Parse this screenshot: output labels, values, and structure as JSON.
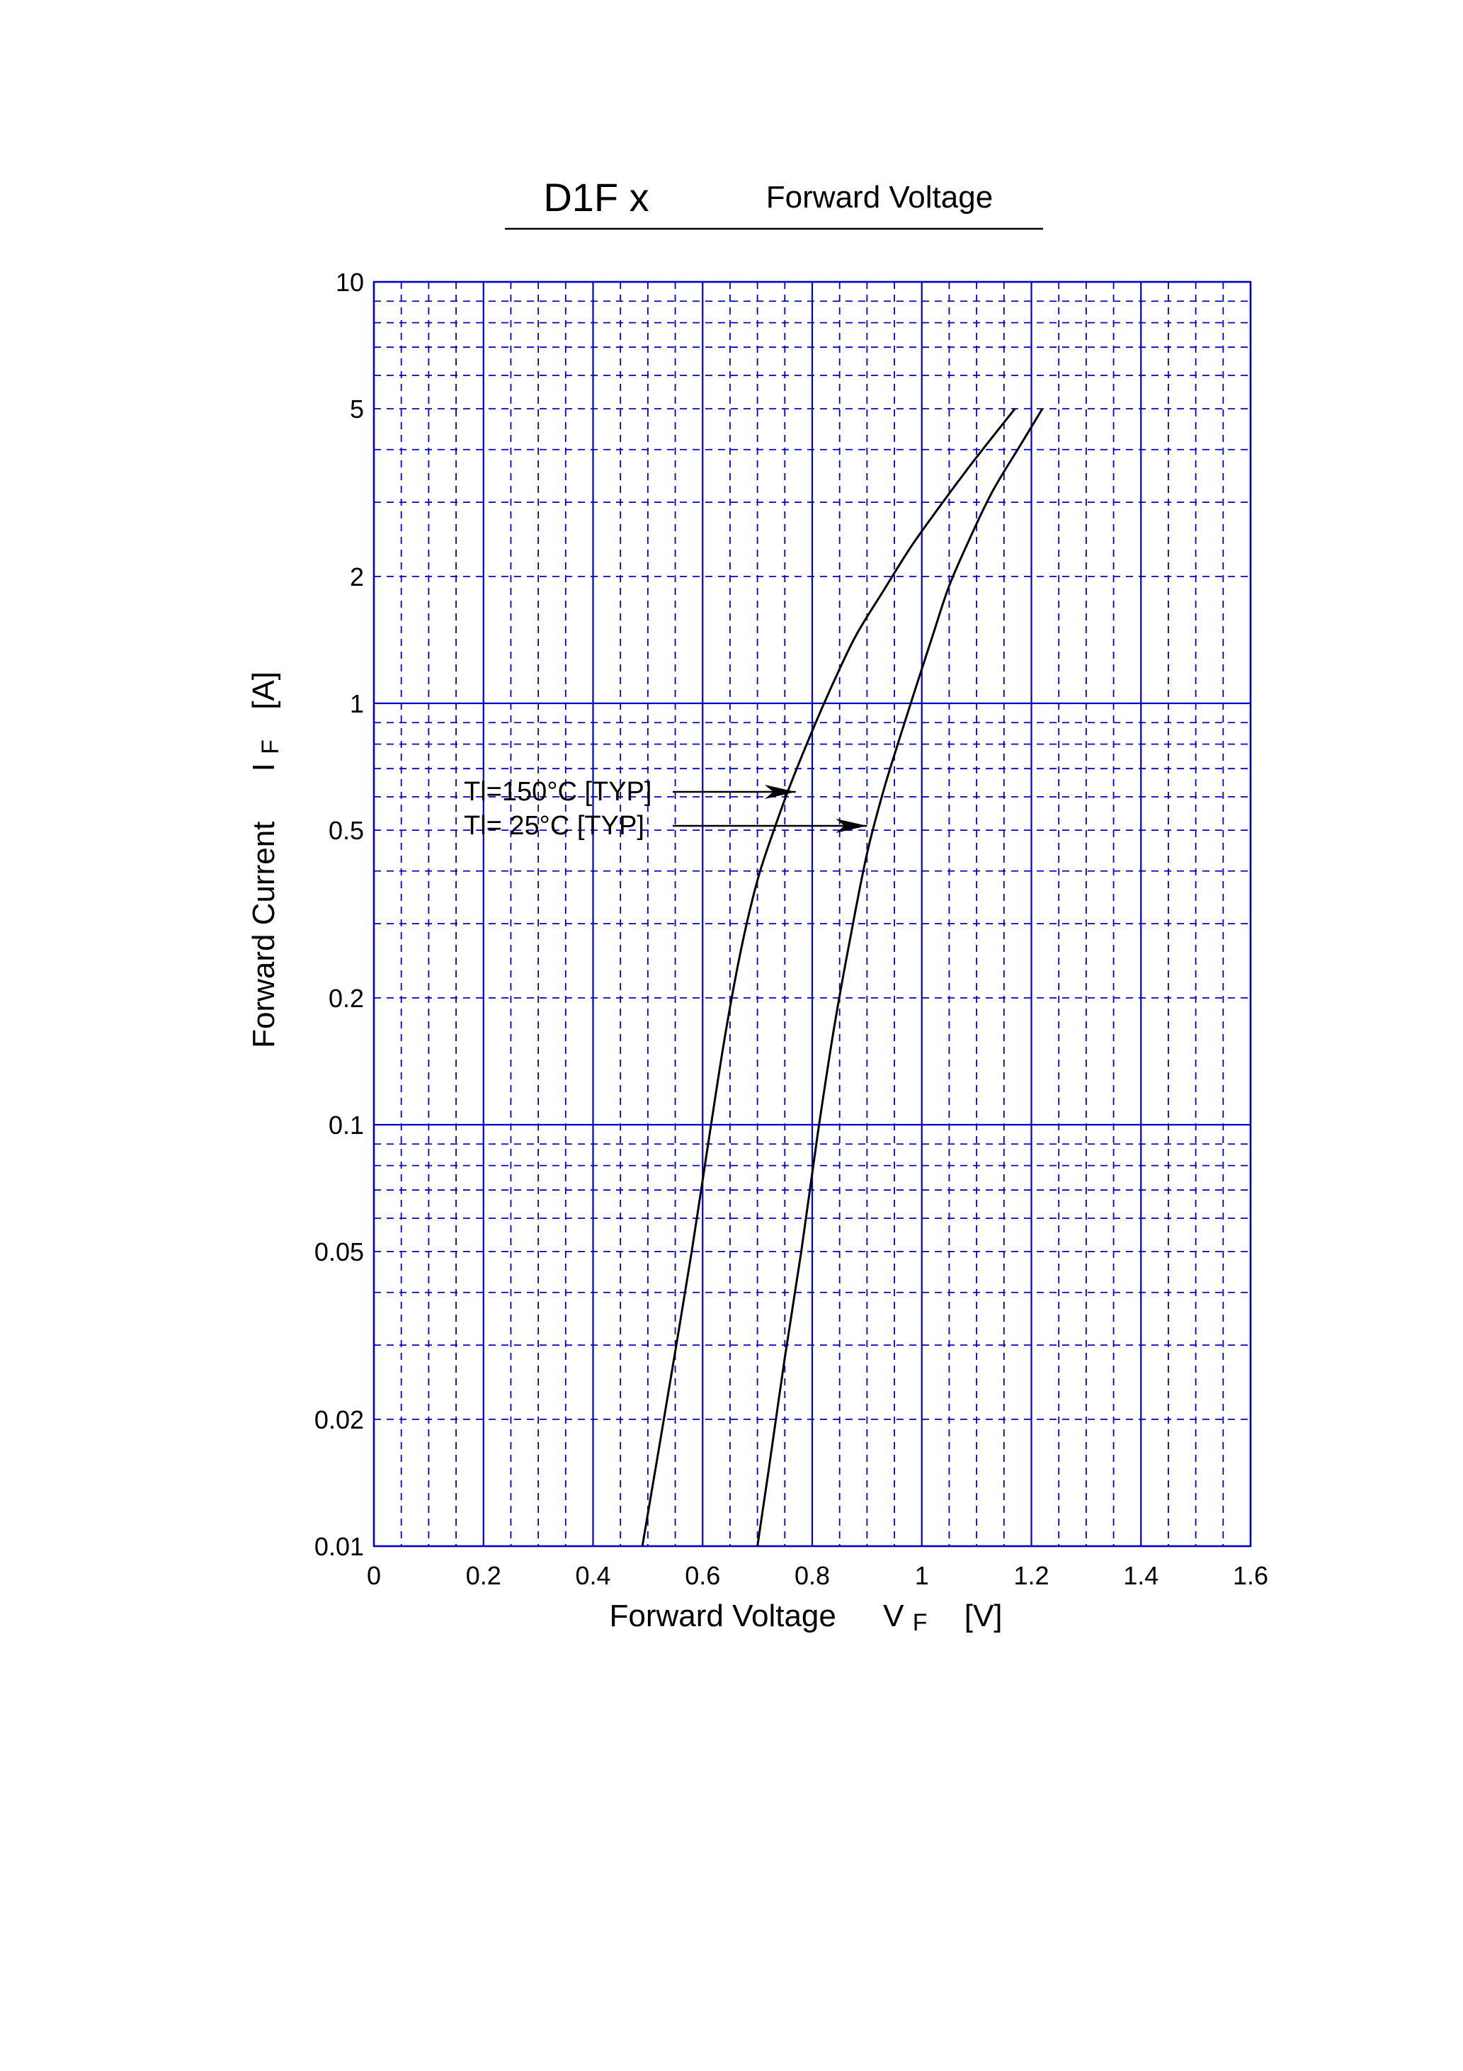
{
  "colors": {
    "grid": "#0000c8",
    "curve": "#000000",
    "text": "#000000",
    "background": "#ffffff"
  },
  "header": {
    "part_number": "D1F x",
    "title": "Forward Voltage"
  },
  "axes": {
    "xlabel_main": "Forward Voltage",
    "xlabel_symbol": "V",
    "xlabel_subscript": "F",
    "xlabel_unit": "[V]",
    "ylabel_main": "Forward Current",
    "ylabel_symbol": "I",
    "ylabel_subscript": "F",
    "ylabel_unit": "[A]"
  },
  "chart_data": {
    "type": "line",
    "title": "Forward Voltage",
    "xlabel": "Forward Voltage VF [V]",
    "ylabel": "Forward Current IF [A]",
    "xlim": [
      0,
      1.6
    ],
    "ylim": [
      0.01,
      10
    ],
    "yscale": "log",
    "grid": true,
    "x_ticks": [
      {
        "value": 0,
        "label": "0"
      },
      {
        "value": 0.2,
        "label": "0.2"
      },
      {
        "value": 0.4,
        "label": "0.4"
      },
      {
        "value": 0.6,
        "label": "0.6"
      },
      {
        "value": 0.8,
        "label": "0.8"
      },
      {
        "value": 1.0,
        "label": "1"
      },
      {
        "value": 1.2,
        "label": "1.2"
      },
      {
        "value": 1.4,
        "label": "1.4"
      },
      {
        "value": 1.6,
        "label": "1.6"
      }
    ],
    "x_minor_dashed": [
      0.05,
      0.1,
      0.15,
      0.25,
      0.3,
      0.35,
      0.45,
      0.5,
      0.55,
      0.65,
      0.7,
      0.75,
      0.85,
      0.9,
      0.95,
      1.05,
      1.1,
      1.15,
      1.25,
      1.3,
      1.35,
      1.45,
      1.5,
      1.55
    ],
    "y_ticks": [
      {
        "value": 0.01,
        "label": "0.01"
      },
      {
        "value": 0.02,
        "label": "0.02"
      },
      {
        "value": 0.05,
        "label": "0.05"
      },
      {
        "value": 0.1,
        "label": "0.1"
      },
      {
        "value": 0.2,
        "label": "0.2"
      },
      {
        "value": 0.5,
        "label": "0.5"
      },
      {
        "value": 1,
        "label": "1"
      },
      {
        "value": 2,
        "label": "2"
      },
      {
        "value": 5,
        "label": "5"
      },
      {
        "value": 10,
        "label": "10"
      }
    ],
    "y_decades": [
      0.01,
      0.1,
      1,
      10
    ],
    "y_minor_dashed": [
      0.02,
      0.03,
      0.04,
      0.05,
      0.06,
      0.07,
      0.08,
      0.09,
      0.2,
      0.3,
      0.4,
      0.5,
      0.6,
      0.7,
      0.8,
      0.9,
      2,
      3,
      4,
      5,
      6,
      7,
      8,
      9
    ],
    "series": [
      {
        "name": "Tl=150°C [TYP]",
        "points": [
          {
            "x": 0.49,
            "y": 0.01
          },
          {
            "x": 0.52,
            "y": 0.017
          },
          {
            "x": 0.55,
            "y": 0.029
          },
          {
            "x": 0.58,
            "y": 0.05
          },
          {
            "x": 0.61,
            "y": 0.09
          },
          {
            "x": 0.64,
            "y": 0.16
          },
          {
            "x": 0.67,
            "y": 0.26
          },
          {
            "x": 0.7,
            "y": 0.38
          },
          {
            "x": 0.73,
            "y": 0.5
          },
          {
            "x": 0.76,
            "y": 0.64
          },
          {
            "x": 0.8,
            "y": 0.86
          },
          {
            "x": 0.84,
            "y": 1.13
          },
          {
            "x": 0.88,
            "y": 1.45
          },
          {
            "x": 0.93,
            "y": 1.85
          },
          {
            "x": 0.98,
            "y": 2.35
          },
          {
            "x": 1.03,
            "y": 2.9
          },
          {
            "x": 1.08,
            "y": 3.55
          },
          {
            "x": 1.13,
            "y": 4.3
          },
          {
            "x": 1.17,
            "y": 5.0
          }
        ]
      },
      {
        "name": "Tl=  25°C [TYP]",
        "points": [
          {
            "x": 0.7,
            "y": 0.01
          },
          {
            "x": 0.72,
            "y": 0.015
          },
          {
            "x": 0.75,
            "y": 0.028
          },
          {
            "x": 0.78,
            "y": 0.05
          },
          {
            "x": 0.81,
            "y": 0.095
          },
          {
            "x": 0.84,
            "y": 0.17
          },
          {
            "x": 0.87,
            "y": 0.28
          },
          {
            "x": 0.9,
            "y": 0.44
          },
          {
            "x": 0.93,
            "y": 0.62
          },
          {
            "x": 0.96,
            "y": 0.83
          },
          {
            "x": 0.99,
            "y": 1.1
          },
          {
            "x": 1.02,
            "y": 1.45
          },
          {
            "x": 1.05,
            "y": 1.9
          },
          {
            "x": 1.09,
            "y": 2.5
          },
          {
            "x": 1.13,
            "y": 3.2
          },
          {
            "x": 1.18,
            "y": 4.1
          },
          {
            "x": 1.22,
            "y": 5.0
          }
        ]
      }
    ],
    "annotations": [
      {
        "text": "Tl=150°C [TYP]",
        "target_x": 0.77,
        "target_y": 0.56
      },
      {
        "text": "Tl=  25°C [TYP]",
        "target_x": 0.9,
        "target_y": 0.45
      }
    ]
  }
}
